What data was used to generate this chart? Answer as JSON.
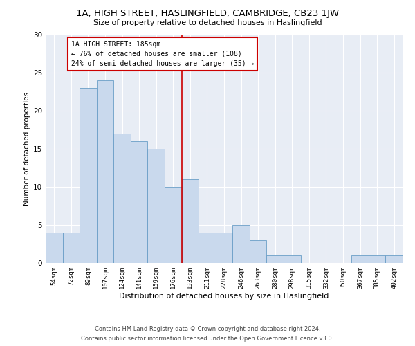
{
  "title": "1A, HIGH STREET, HASLINGFIELD, CAMBRIDGE, CB23 1JW",
  "subtitle": "Size of property relative to detached houses in Haslingfield",
  "xlabel": "Distribution of detached houses by size in Haslingfield",
  "ylabel": "Number of detached properties",
  "bar_labels": [
    "54sqm",
    "72sqm",
    "89sqm",
    "107sqm",
    "124sqm",
    "141sqm",
    "159sqm",
    "176sqm",
    "193sqm",
    "211sqm",
    "228sqm",
    "246sqm",
    "263sqm",
    "280sqm",
    "298sqm",
    "315sqm",
    "332sqm",
    "350sqm",
    "367sqm",
    "385sqm",
    "402sqm"
  ],
  "bar_values": [
    4,
    4,
    23,
    24,
    17,
    16,
    15,
    10,
    11,
    4,
    4,
    5,
    3,
    1,
    1,
    0,
    0,
    0,
    1,
    1,
    1
  ],
  "bar_color": "#c9d9ed",
  "bar_edge_color": "#6a9ec7",
  "fig_facecolor": "#ffffff",
  "background_color": "#e8edf5",
  "grid_color": "#ffffff",
  "vline_x": 7.5,
  "vline_color": "#cc0000",
  "annotation_text": "1A HIGH STREET: 185sqm\n← 76% of detached houses are smaller (108)\n24% of semi-detached houses are larger (35) →",
  "annotation_box_color": "#ffffff",
  "annotation_box_edge_color": "#cc0000",
  "ylim": [
    0,
    30
  ],
  "yticks": [
    0,
    5,
    10,
    15,
    20,
    25,
    30
  ],
  "footer_line1": "Contains HM Land Registry data © Crown copyright and database right 2024.",
  "footer_line2": "Contains public sector information licensed under the Open Government Licence v3.0."
}
